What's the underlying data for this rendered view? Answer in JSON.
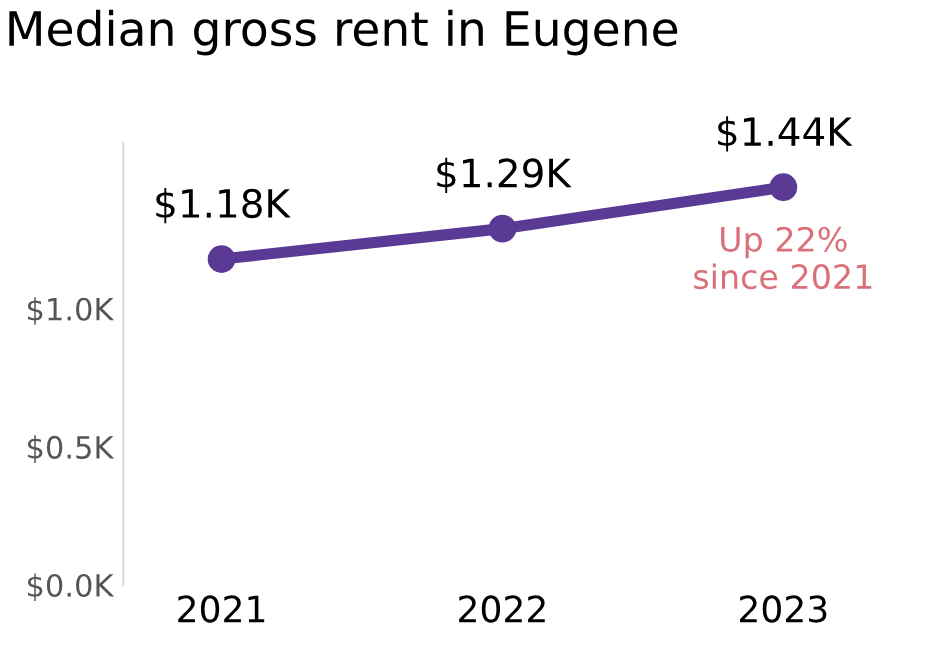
{
  "chart_data": {
    "type": "line",
    "title": "Median gross rent in Eugene",
    "categories": [
      "2021",
      "2022",
      "2023"
    ],
    "series": [
      {
        "color": "#5b3a96",
        "values": [
          1.18,
          1.29,
          1.44
        ],
        "value_labels": [
          "$1.18K",
          "$1.29K",
          "$1.44K"
        ]
      }
    ],
    "ylim": [
      0,
      1.6
    ],
    "yticks": [
      {
        "value": 0,
        "label": "$0.0K"
      },
      {
        "value": 0.5,
        "label": "$0.5K"
      },
      {
        "value": 1.0,
        "label": "$1.0K"
      }
    ],
    "annotations": [
      {
        "text": "Up 22%\nsince 2021",
        "x": "2023",
        "y": 1.44
      }
    ],
    "marker": "circle",
    "grid": false,
    "legend": false
  }
}
